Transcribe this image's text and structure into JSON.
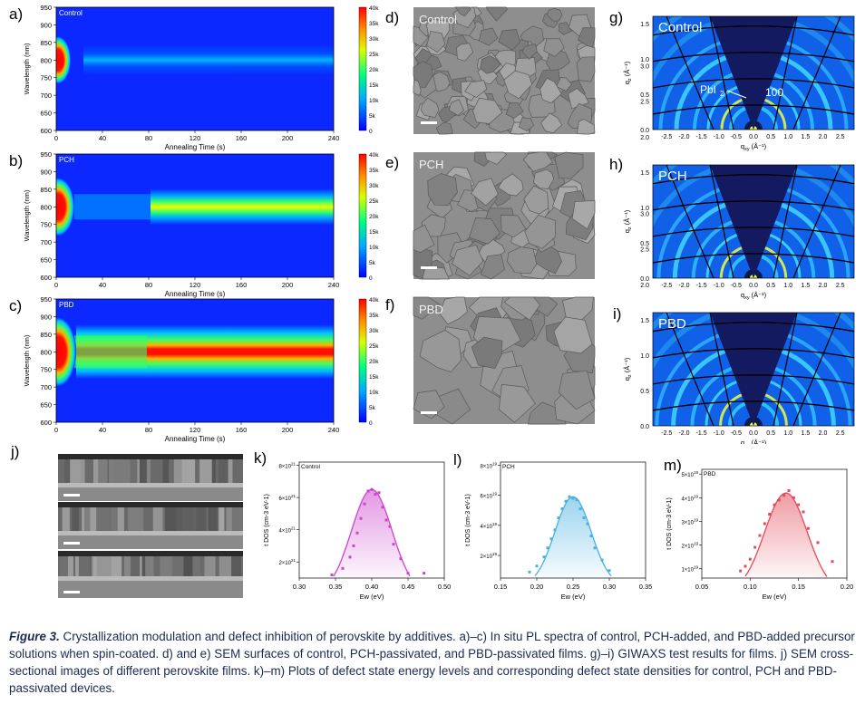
{
  "panel_letters": {
    "a": "a)",
    "b": "b)",
    "c": "c)",
    "d": "d)",
    "e": "e)",
    "f": "f)",
    "g": "g)",
    "h": "h)",
    "i": "i)",
    "j": "j)",
    "k": "k)",
    "l": "l)",
    "m": "m)"
  },
  "pl_maps": {
    "ylabel": "Wavelength (nm)",
    "xlabel": "Annealing Time (s)",
    "xticks": [
      "0",
      "40",
      "80",
      "120",
      "160",
      "200",
      "240"
    ],
    "yticks": [
      "600",
      "650",
      "700",
      "750",
      "800",
      "850",
      "900",
      "950"
    ],
    "cbar_ticks": [
      "0",
      "5k",
      "10k",
      "15k",
      "20k",
      "25k",
      "30k",
      "35k",
      "40k"
    ],
    "panels": [
      {
        "name": "Control"
      },
      {
        "name": "PCH"
      },
      {
        "name": "PBD"
      }
    ]
  },
  "sem": {
    "panels": [
      {
        "name": "Control"
      },
      {
        "name": "PCH"
      },
      {
        "name": "PBD"
      }
    ]
  },
  "giwaxs": {
    "xlabel_main": "q",
    "xlabel_sub": "xy",
    "ylabel_main": "q",
    "ylabel_sub": "z",
    "unit": " (Å",
    "xticks": [
      "-2.5",
      "-2.0",
      "-1.5",
      "-1.0",
      "-0.5",
      "0.0",
      "0.5",
      "1.0",
      "1.5",
      "2.0",
      "2.5"
    ],
    "yticks": [
      "0.0",
      "0.5",
      "1.0",
      "1.5",
      "2.0",
      "2.5",
      "3.0"
    ],
    "panels": [
      {
        "name": "Control"
      },
      {
        "name": "PCH"
      },
      {
        "name": "PBD"
      }
    ],
    "annot_pbi": "PbI",
    "annot_pbi_sub": "2",
    "annot_100": "100"
  },
  "colors": {
    "control": "#cc44cc",
    "pch": "#4ab0e0",
    "pbd": "#e34a5a",
    "caption": "#1a2a52"
  },
  "caption": {
    "figure": "Figure 3.",
    "text": " Crystallization modulation and defect inhibition of perovskite by additives. a)–c) In situ PL spectra of control, PCH-added, and PBD-added precursor solutions when spin-coated. d) and e) SEM surfaces of control, PCH-passivated, and PBD-passivated films. g)–i) GIWAXS test results for films. j) SEM cross-sectional images of different perovskite films. k)–m) Plots of defect state energy levels and corresponding defect state densities for control, PCH and PBD-passivated devices."
  },
  "chart_data": [
    {
      "type": "scatter",
      "title": "Control",
      "xlabel": "Ew (eV)",
      "ylabel": "t DOS (cm-3 eV-1)",
      "xlim": [
        0.3,
        0.5
      ],
      "ylim": [
        1.0,
        8.2
      ],
      "y_exponent": 21,
      "xticks": [
        "0.30",
        "0.35",
        "0.40",
        "0.45",
        "0.50"
      ],
      "yticks": [
        {
          "v": 2,
          "label": "2×10"
        },
        {
          "v": 4,
          "label": "4×10"
        },
        {
          "v": 6,
          "label": "6×10"
        },
        {
          "v": 8,
          "label": "8×10"
        }
      ],
      "tick_exp": "21",
      "x": [
        0.345,
        0.36,
        0.37,
        0.375,
        0.38,
        0.385,
        0.39,
        0.395,
        0.4,
        0.405,
        0.41,
        0.415,
        0.42,
        0.425,
        0.43,
        0.44,
        0.45,
        0.472
      ],
      "y": [
        1.2,
        1.6,
        2.3,
        3.0,
        3.8,
        4.7,
        5.6,
        6.4,
        6.5,
        6.2,
        6.3,
        5.4,
        4.6,
        4.2,
        3.1,
        2.2,
        1.3,
        1.3
      ],
      "fit_peak": 0.4,
      "fit_amp": 6.5,
      "fit_sigma": 0.028
    },
    {
      "type": "scatter",
      "title": "PCH",
      "xlabel": "Ew (eV)",
      "ylabel": "t DOS (cm-3 eV-1)",
      "xlim": [
        0.15,
        0.35
      ],
      "ylim": [
        0.5,
        8.2
      ],
      "y_exponent": 19,
      "xticks": [
        "0.15",
        "0.20",
        "0.25",
        "0.30",
        "0.35"
      ],
      "yticks": [
        {
          "v": 2,
          "label": "2×10"
        },
        {
          "v": 4,
          "label": "4×10"
        },
        {
          "v": 6,
          "label": "6×10"
        },
        {
          "v": 8,
          "label": "8×10"
        }
      ],
      "tick_exp": "19",
      "x": [
        0.19,
        0.2,
        0.21,
        0.215,
        0.22,
        0.225,
        0.23,
        0.235,
        0.24,
        0.245,
        0.25,
        0.255,
        0.26,
        0.265,
        0.27,
        0.275,
        0.28,
        0.29,
        0.3
      ],
      "y": [
        0.9,
        1.3,
        1.9,
        2.5,
        3.1,
        3.7,
        4.5,
        5.1,
        5.6,
        5.9,
        5.8,
        5.7,
        5.1,
        4.5,
        4.1,
        3.3,
        2.5,
        1.7,
        1.0
      ],
      "fit_peak": 0.25,
      "fit_amp": 5.9,
      "fit_sigma": 0.025
    },
    {
      "type": "scatter",
      "title": "PBD",
      "xlabel": "Ew (eV)",
      "ylabel": "t DOS (cm-3 eV-1)",
      "xlim": [
        0.05,
        0.2
      ],
      "ylim": [
        0.6,
        5.2
      ],
      "y_exponent": 19,
      "xticks": [
        "0.05",
        "0.10",
        "0.15",
        "0.20"
      ],
      "yticks": [
        {
          "v": 1,
          "label": "1×10"
        },
        {
          "v": 2,
          "label": "2×10"
        },
        {
          "v": 3,
          "label": "3×10"
        },
        {
          "v": 4,
          "label": "4×10"
        },
        {
          "v": 5,
          "label": "5×10"
        }
      ],
      "tick_exp": "19",
      "x": [
        0.09,
        0.095,
        0.1,
        0.105,
        0.11,
        0.115,
        0.12,
        0.125,
        0.13,
        0.135,
        0.14,
        0.145,
        0.15,
        0.155,
        0.16,
        0.17,
        0.185
      ],
      "y": [
        0.9,
        1.1,
        1.4,
        1.9,
        2.4,
        2.9,
        3.3,
        3.7,
        3.9,
        4.1,
        4.3,
        4.0,
        3.7,
        3.4,
        2.7,
        2.1,
        1.3
      ],
      "fit_peak": 0.137,
      "fit_amp": 4.2,
      "fit_sigma": 0.022
    }
  ]
}
